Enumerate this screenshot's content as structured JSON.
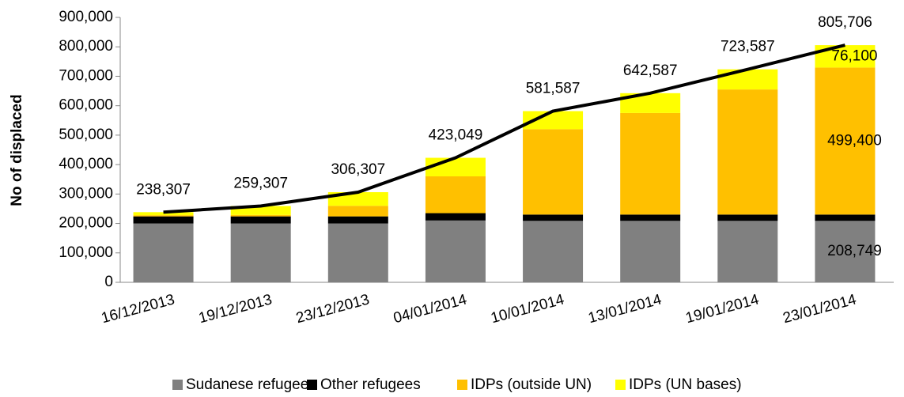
{
  "chart_data": {
    "type": "stacked_bar_line",
    "y_label": "No of displaced",
    "categories": [
      "16/12/2013",
      "19/12/2013",
      "23/12/2013",
      "04/01/2014",
      "10/01/2014",
      "13/01/2014",
      "19/01/2014",
      "23/01/2014"
    ],
    "series": [
      {
        "name": "Sudanese refugees",
        "color": "#808080",
        "values": [
          200000,
          200000,
          200000,
          210000,
          208749,
          208749,
          208749,
          208749
        ],
        "value_labels": [
          null,
          null,
          null,
          null,
          null,
          null,
          null,
          "208,749"
        ]
      },
      {
        "name": "Other refugees",
        "color": "#000000",
        "values": [
          24000,
          24000,
          24000,
          25000,
          21457,
          21457,
          21457,
          21457
        ]
      },
      {
        "name": "IDPs (outside UN)",
        "color": "#ffc000",
        "values": [
          4000,
          5000,
          36000,
          125000,
          290000,
          345000,
          425000,
          499400
        ],
        "value_labels": [
          null,
          null,
          null,
          null,
          null,
          null,
          null,
          "499,400"
        ]
      },
      {
        "name": "IDPs (UN bases)",
        "color": "#ffff00",
        "values": [
          10307,
          30307,
          46307,
          63049,
          61381,
          67381,
          68381,
          76100
        ],
        "value_labels": [
          null,
          null,
          null,
          null,
          null,
          null,
          null,
          "76,100"
        ]
      }
    ],
    "line": {
      "color": "#000000",
      "values": [
        238307,
        259307,
        306307,
        423049,
        581587,
        642587,
        723587,
        805706
      ],
      "value_labels": [
        "238,307",
        "259,307",
        "306,307",
        "423,049",
        "581,587",
        "642,587",
        "723,587",
        "805,706"
      ]
    },
    "ylim": [
      0,
      900000
    ],
    "yticks": [
      0,
      {
        "value": 100000,
        "label": "100,000"
      },
      {
        "value": 200000,
        "label": "200,000"
      },
      {
        "value": 300000,
        "label": "300,000"
      },
      {
        "value": 400000,
        "label": "400,000"
      },
      {
        "value": 500000,
        "label": "500,000"
      },
      {
        "value": 600000,
        "label": "600,000"
      },
      {
        "value": 700000,
        "label": "700,000"
      },
      {
        "value": 800000,
        "label": "800,000"
      },
      {
        "value": 900000,
        "label": "900,000"
      }
    ],
    "legend": "bottom"
  }
}
